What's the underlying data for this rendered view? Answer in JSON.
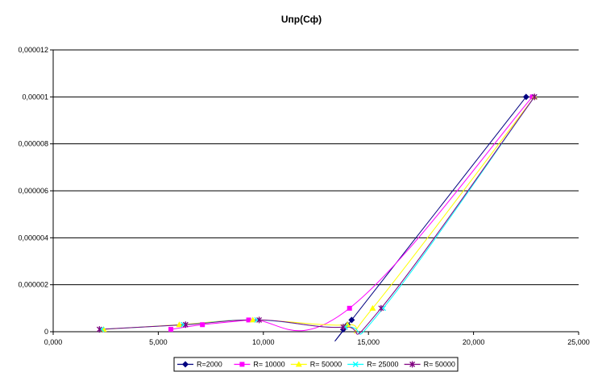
{
  "chart_data": {
    "type": "scatter",
    "title": "Uпр(Сф)",
    "xlabel": "",
    "ylabel": "",
    "xlim": [
      0,
      25000
    ],
    "ylim": [
      0,
      1.2e-05
    ],
    "x_ticks": [
      "0,000",
      "5,000",
      "10,000",
      "15,000",
      "20,000",
      "25,000"
    ],
    "y_ticks": [
      "0",
      "0,000002",
      "0,000004",
      "0,000006",
      "0,000008",
      "0,00001",
      "0,000012"
    ],
    "grid": "horizontal",
    "smoothed_lines": true,
    "legend_position": "bottom",
    "series": [
      {
        "name": "R=2000",
        "color": "#000080",
        "marker": "diamond",
        "points": [
          [
            13800,
            1e-07
          ],
          [
            14000,
            3e-07
          ],
          [
            14200,
            5e-07
          ],
          [
            22500,
            1e-05
          ]
        ]
      },
      {
        "name": "R= 10000",
        "color": "#ff00ff",
        "marker": "square",
        "points": [
          [
            5600,
            1e-07
          ],
          [
            7100,
            3e-07
          ],
          [
            9300,
            5e-07
          ],
          [
            14100,
            1e-06
          ],
          [
            22800,
            1e-05
          ]
        ]
      },
      {
        "name": "R= 50000",
        "color": "#ffff00",
        "marker": "triangle",
        "points": [
          [
            2400,
            1e-07
          ],
          [
            6000,
            3e-07
          ],
          [
            9500,
            5e-07
          ],
          [
            14000,
            3e-07
          ],
          [
            15200,
            1e-06
          ],
          [
            22900,
            1e-05
          ]
        ]
      },
      {
        "name": "R= 25000",
        "color": "#00ffff",
        "marker": "x",
        "points": [
          [
            2300,
            1e-07
          ],
          [
            6200,
            3e-07
          ],
          [
            9700,
            5e-07
          ],
          [
            13900,
            2e-07
          ],
          [
            15700,
            1e-06
          ],
          [
            22900,
            1e-05
          ]
        ]
      },
      {
        "name": "R= 50000",
        "color": "#800080",
        "marker": "star",
        "points": [
          [
            2200,
            1e-07
          ],
          [
            6300,
            3e-07
          ],
          [
            9800,
            5e-07
          ],
          [
            13800,
            2e-07
          ],
          [
            15600,
            1e-06
          ],
          [
            22900,
            1e-05
          ]
        ]
      }
    ]
  }
}
